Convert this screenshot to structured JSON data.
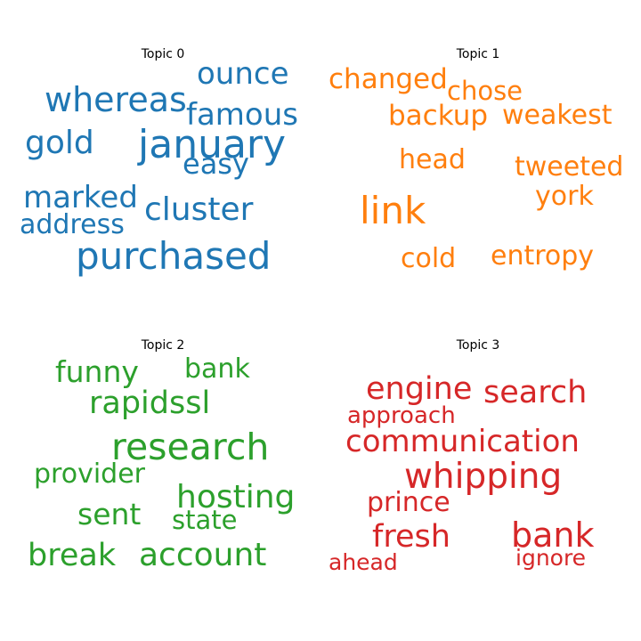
{
  "chart_data": [
    {
      "type": "wordcloud",
      "title": "Topic 0",
      "color": "#1f77b4",
      "words": [
        "ounce",
        "whereas",
        "famous",
        "gold",
        "january",
        "easy",
        "marked",
        "cluster",
        "address",
        "purchased"
      ]
    },
    {
      "type": "wordcloud",
      "title": "Topic 1",
      "color": "#ff7f0e",
      "words": [
        "changed",
        "chose",
        "backup",
        "weakest",
        "head",
        "tweeted",
        "york",
        "link",
        "cold",
        "entropy"
      ]
    },
    {
      "type": "wordcloud",
      "title": "Topic 2",
      "color": "#2ca02c",
      "words": [
        "funny",
        "bank",
        "rapidssl",
        "research",
        "provider",
        "hosting",
        "sent",
        "state",
        "break",
        "account"
      ]
    },
    {
      "type": "wordcloud",
      "title": "Topic 3",
      "color": "#d62728",
      "words": [
        "engine",
        "search",
        "approach",
        "communication",
        "whipping",
        "prince",
        "fresh",
        "bank",
        "ahead",
        "ignore"
      ]
    }
  ]
}
